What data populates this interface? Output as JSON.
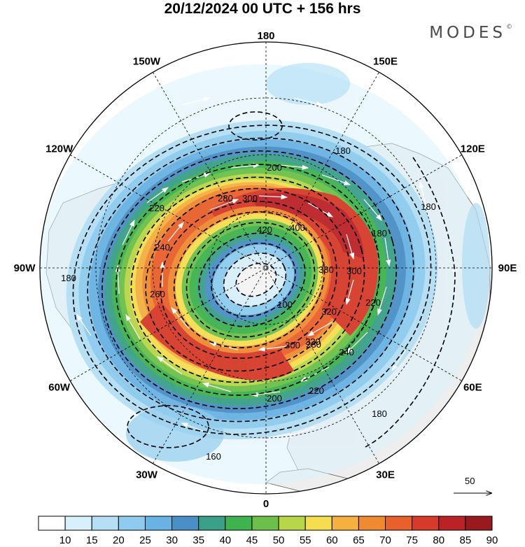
{
  "title": "20/12/2024  00 UTC  + 156 hrs",
  "brand": "MODES",
  "brand_mark": "©",
  "longitude_labels": [
    {
      "text": "180",
      "lon": 180
    },
    {
      "text": "150E",
      "lon": 150
    },
    {
      "text": "120E",
      "lon": 120
    },
    {
      "text": "90E",
      "lon": 90
    },
    {
      "text": "60E",
      "lon": 60
    },
    {
      "text": "30E",
      "lon": 30
    },
    {
      "text": "0",
      "lon": 0
    },
    {
      "text": "30W",
      "lon": -30
    },
    {
      "text": "60W",
      "lon": -60
    },
    {
      "text": "90W",
      "lon": -90
    },
    {
      "text": "120W",
      "lon": -120
    },
    {
      "text": "150W",
      "lon": -150
    }
  ],
  "contour_labels": [
    "180",
    "180",
    "200",
    "220",
    "240",
    "260",
    "280",
    "300",
    "420",
    "400",
    "380",
    "300",
    "320",
    "320",
    "300",
    "280",
    "240",
    "220",
    "220",
    "200",
    "180",
    "180",
    "160",
    "100",
    "180"
  ],
  "vector_reference": {
    "value": "50"
  },
  "colorbar": {
    "levels": [
      "10",
      "15",
      "20",
      "25",
      "30",
      "35",
      "40",
      "45",
      "50",
      "55",
      "60",
      "65",
      "70",
      "75",
      "80",
      "85",
      "90"
    ],
    "colors": [
      "#ffffff",
      "#d8f0fb",
      "#b4dff5",
      "#8ecbee",
      "#69b2e3",
      "#4a8fc6",
      "#3aa087",
      "#3fb34f",
      "#6cc04a",
      "#b9d64a",
      "#f5dd50",
      "#f5b040",
      "#f08a32",
      "#e8602c",
      "#d63a2a",
      "#bb2226",
      "#981a1e"
    ]
  },
  "colors": {
    "land": "#eeeeee",
    "ocean": "#ffffff",
    "contour": "#000000",
    "vectors": "#ffffff"
  }
}
